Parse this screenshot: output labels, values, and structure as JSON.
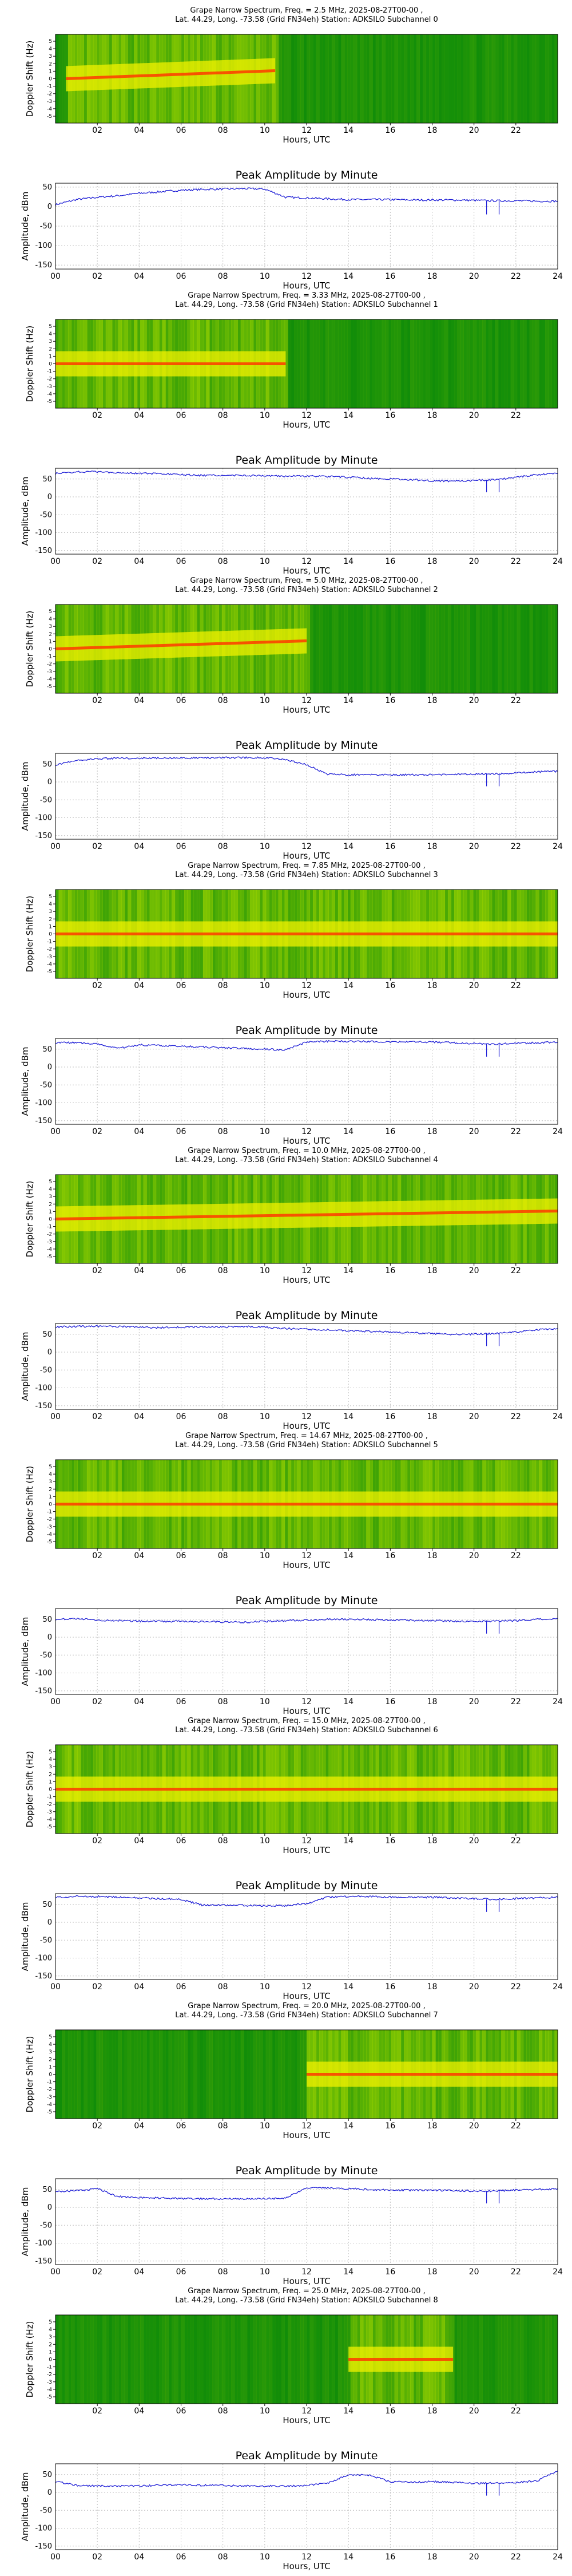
{
  "chart_data": [
    {
      "channel": 0,
      "type": "heatmap",
      "title_line1": "Grape Narrow Spectrum, Freq. = 2.5 MHz, 2025-08-27T00-00 ,",
      "title_line2": "Lat.  44.29, Long. -73.58 (Grid FN34eh) Station: ADKSILO Subchannel 0",
      "xlabel": "Hours, UTC",
      "ylabel": "Doppler Shift (Hz)",
      "x_ticks": [
        "02",
        "04",
        "06",
        "08",
        "10",
        "12",
        "14",
        "16",
        "18",
        "20",
        "22"
      ],
      "y_ticks": [
        "-5",
        "-4",
        "-3",
        "-2",
        "-1",
        "0",
        "1",
        "2",
        "3",
        "4",
        "5"
      ],
      "bright_span_hours": [
        0.5,
        10.5
      ],
      "band_rise": true
    },
    {
      "channel": 0,
      "type": "line",
      "title": "Peak Amplitude by Minute",
      "xlabel": "Hours, UTC",
      "ylabel": "Amplitude, dBm",
      "ylim": [
        -160,
        60
      ],
      "y_ticks": [
        "50",
        "0",
        "-50",
        "-100",
        "-150"
      ],
      "x_ticks": [
        "00",
        "02",
        "04",
        "06",
        "08",
        "10",
        "12",
        "14",
        "16",
        "18",
        "20",
        "22",
        "24"
      ],
      "x_hours": [
        0,
        1,
        2,
        3,
        4,
        5,
        6,
        7,
        8,
        9,
        10,
        11,
        12,
        13,
        14,
        15,
        16,
        17,
        18,
        19,
        20,
        21,
        22,
        23,
        24
      ],
      "values": [
        5,
        18,
        24,
        28,
        34,
        38,
        42,
        44,
        45,
        46,
        45,
        24,
        22,
        20,
        18,
        18,
        18,
        17,
        17,
        17,
        16,
        15,
        15,
        14,
        14
      ]
    },
    {
      "channel": 1,
      "type": "heatmap",
      "title_line1": "Grape Narrow Spectrum, Freq. = 3.33 MHz, 2025-08-27T00-00 ,",
      "title_line2": "Lat.  44.29, Long. -73.58 (Grid FN34eh) Station: ADKSILO Subchannel 1",
      "xlabel": "Hours, UTC",
      "ylabel": "Doppler Shift (Hz)",
      "x_ticks": [
        "02",
        "04",
        "06",
        "08",
        "10",
        "12",
        "14",
        "16",
        "18",
        "20",
        "22"
      ],
      "y_ticks": [
        "-5",
        "-4",
        "-3",
        "-2",
        "-1",
        "0",
        "1",
        "2",
        "3",
        "4",
        "5"
      ],
      "bright_span_hours": [
        0,
        11
      ],
      "band_rise": false
    },
    {
      "channel": 1,
      "type": "line",
      "title": "Peak Amplitude by Minute",
      "xlabel": "Hours, UTC",
      "ylabel": "Amplitude, dBm",
      "ylim": [
        -160,
        80
      ],
      "y_ticks": [
        "50",
        "0",
        "-50",
        "-100",
        "-150"
      ],
      "x_ticks": [
        "00",
        "02",
        "04",
        "06",
        "08",
        "10",
        "12",
        "14",
        "16",
        "18",
        "20",
        "22",
        "24"
      ],
      "x_hours": [
        0,
        1,
        2,
        3,
        4,
        5,
        6,
        7,
        8,
        9,
        10,
        11,
        12,
        13,
        14,
        15,
        16,
        17,
        18,
        19,
        20,
        21,
        22,
        23,
        24
      ],
      "values": [
        65,
        70,
        70,
        68,
        66,
        64,
        62,
        60,
        60,
        60,
        59,
        58,
        58,
        57,
        55,
        52,
        50,
        48,
        45,
        44,
        46,
        48,
        55,
        62,
        65
      ]
    },
    {
      "channel": 2,
      "type": "heatmap",
      "title_line1": "Grape Narrow Spectrum, Freq. = 5.0 MHz, 2025-08-27T00-00 ,",
      "title_line2": "Lat.  44.29, Long. -73.58 (Grid FN34eh) Station: ADKSILO Subchannel 2",
      "xlabel": "Hours, UTC",
      "ylabel": "Doppler Shift (Hz)",
      "x_ticks": [
        "02",
        "04",
        "06",
        "08",
        "10",
        "12",
        "14",
        "16",
        "18",
        "20",
        "22"
      ],
      "y_ticks": [
        "-5",
        "-4",
        "-3",
        "-2",
        "-1",
        "0",
        "1",
        "2",
        "3",
        "4",
        "5"
      ],
      "bright_span_hours": [
        0,
        12
      ],
      "band_rise": true
    },
    {
      "channel": 2,
      "type": "line",
      "title": "Peak Amplitude by Minute",
      "xlabel": "Hours, UTC",
      "ylabel": "Amplitude, dBm",
      "ylim": [
        -160,
        80
      ],
      "y_ticks": [
        "50",
        "0",
        "-50",
        "-100",
        "-150"
      ],
      "x_ticks": [
        "00",
        "02",
        "04",
        "06",
        "08",
        "10",
        "12",
        "14",
        "16",
        "18",
        "20",
        "22",
        "24"
      ],
      "x_hours": [
        0,
        1,
        2,
        3,
        4,
        5,
        6,
        7,
        8,
        9,
        10,
        11,
        12,
        13,
        14,
        15,
        16,
        17,
        18,
        19,
        20,
        21,
        22,
        23,
        24
      ],
      "values": [
        48,
        60,
        65,
        66,
        67,
        67,
        67,
        67,
        68,
        68,
        68,
        62,
        48,
        22,
        20,
        20,
        20,
        20,
        20,
        21,
        22,
        23,
        25,
        28,
        30
      ]
    },
    {
      "channel": 3,
      "type": "heatmap",
      "title_line1": "Grape Narrow Spectrum, Freq. = 7.85 MHz, 2025-08-27T00-00 ,",
      "title_line2": "Lat.  44.29, Long. -73.58 (Grid FN34eh) Station: ADKSILO Subchannel 3",
      "xlabel": "Hours, UTC",
      "ylabel": "Doppler Shift (Hz)",
      "x_ticks": [
        "02",
        "04",
        "06",
        "08",
        "10",
        "12",
        "14",
        "16",
        "18",
        "20",
        "22"
      ],
      "y_ticks": [
        "-5",
        "-4",
        "-3",
        "-2",
        "-1",
        "0",
        "1",
        "2",
        "3",
        "4",
        "5"
      ],
      "bright_span_hours": [
        0,
        24
      ],
      "band_rise": false
    },
    {
      "channel": 3,
      "type": "line",
      "title": "Peak Amplitude by Minute",
      "xlabel": "Hours, UTC",
      "ylabel": "Amplitude, dBm",
      "ylim": [
        -160,
        80
      ],
      "y_ticks": [
        "50",
        "0",
        "-50",
        "-100",
        "-150"
      ],
      "x_ticks": [
        "00",
        "02",
        "04",
        "06",
        "08",
        "10",
        "12",
        "14",
        "16",
        "18",
        "20",
        "22",
        "24"
      ],
      "x_hours": [
        0,
        1,
        2,
        3,
        4,
        5,
        6,
        7,
        8,
        9,
        10,
        11,
        12,
        13,
        14,
        15,
        16,
        17,
        18,
        19,
        20,
        21,
        22,
        23,
        24
      ],
      "values": [
        68,
        68,
        65,
        52,
        62,
        60,
        58,
        56,
        54,
        52,
        50,
        48,
        70,
        72,
        72,
        71,
        70,
        70,
        70,
        68,
        66,
        64,
        66,
        68,
        70
      ]
    },
    {
      "channel": 4,
      "type": "heatmap",
      "title_line1": "Grape Narrow Spectrum, Freq. = 10.0 MHz, 2025-08-27T00-00 ,",
      "title_line2": "Lat.  44.29, Long. -73.58 (Grid FN34eh) Station: ADKSILO Subchannel 4",
      "xlabel": "Hours, UTC",
      "ylabel": "Doppler Shift (Hz)",
      "x_ticks": [
        "02",
        "04",
        "06",
        "08",
        "10",
        "12",
        "14",
        "16",
        "18",
        "20",
        "22"
      ],
      "y_ticks": [
        "-5",
        "-4",
        "-3",
        "-2",
        "-1",
        "0",
        "1",
        "2",
        "3",
        "4",
        "5"
      ],
      "bright_span_hours": [
        0,
        24
      ],
      "band_rise": true
    },
    {
      "channel": 4,
      "type": "line",
      "title": "Peak Amplitude by Minute",
      "xlabel": "Hours, UTC",
      "ylabel": "Amplitude, dBm",
      "ylim": [
        -160,
        80
      ],
      "y_ticks": [
        "50",
        "0",
        "-50",
        "-100",
        "-150"
      ],
      "x_ticks": [
        "00",
        "02",
        "04",
        "06",
        "08",
        "10",
        "12",
        "14",
        "16",
        "18",
        "20",
        "22",
        "24"
      ],
      "x_hours": [
        0,
        1,
        2,
        3,
        4,
        5,
        6,
        7,
        8,
        9,
        10,
        11,
        12,
        13,
        14,
        15,
        16,
        17,
        18,
        19,
        20,
        21,
        22,
        23,
        24
      ],
      "values": [
        70,
        72,
        72,
        72,
        70,
        68,
        70,
        70,
        70,
        72,
        70,
        66,
        64,
        62,
        60,
        58,
        56,
        54,
        52,
        50,
        50,
        52,
        56,
        62,
        66
      ]
    },
    {
      "channel": 5,
      "type": "heatmap",
      "title_line1": "Grape Narrow Spectrum, Freq. = 14.67 MHz, 2025-08-27T00-00 ,",
      "title_line2": "Lat.  44.29, Long. -73.58 (Grid FN34eh) Station: ADKSILO Subchannel 5",
      "xlabel": "Hours, UTC",
      "ylabel": "Doppler Shift (Hz)",
      "x_ticks": [
        "02",
        "04",
        "06",
        "08",
        "10",
        "12",
        "14",
        "16",
        "18",
        "20",
        "22"
      ],
      "y_ticks": [
        "-5",
        "-4",
        "-3",
        "-2",
        "-1",
        "0",
        "1",
        "2",
        "3",
        "4",
        "5"
      ],
      "bright_span_hours": [
        0,
        24
      ],
      "band_rise": false
    },
    {
      "channel": 5,
      "type": "line",
      "title": "Peak Amplitude by Minute",
      "xlabel": "Hours, UTC",
      "ylabel": "Amplitude, dBm",
      "ylim": [
        -160,
        80
      ],
      "y_ticks": [
        "50",
        "0",
        "-50",
        "-100",
        "-150"
      ],
      "x_ticks": [
        "00",
        "02",
        "04",
        "06",
        "08",
        "10",
        "12",
        "14",
        "16",
        "18",
        "20",
        "22",
        "24"
      ],
      "x_hours": [
        0,
        1,
        2,
        3,
        4,
        5,
        6,
        7,
        8,
        9,
        10,
        11,
        12,
        13,
        14,
        15,
        16,
        17,
        18,
        19,
        20,
        21,
        22,
        23,
        24
      ],
      "values": [
        50,
        52,
        48,
        46,
        45,
        44,
        44,
        43,
        43,
        42,
        44,
        46,
        48,
        50,
        50,
        49,
        48,
        47,
        46,
        45,
        44,
        45,
        46,
        50,
        52
      ]
    },
    {
      "channel": 6,
      "type": "heatmap",
      "title_line1": "Grape Narrow Spectrum, Freq. = 15.0 MHz, 2025-08-27T00-00 ,",
      "title_line2": "Lat.  44.29, Long. -73.58 (Grid FN34eh) Station: ADKSILO Subchannel 6",
      "xlabel": "Hours, UTC",
      "ylabel": "Doppler Shift (Hz)",
      "x_ticks": [
        "02",
        "04",
        "06",
        "08",
        "10",
        "12",
        "14",
        "16",
        "18",
        "20",
        "22"
      ],
      "y_ticks": [
        "-5",
        "-4",
        "-3",
        "-2",
        "-1",
        "0",
        "1",
        "2",
        "3",
        "4",
        "5"
      ],
      "bright_span_hours": [
        0,
        24
      ],
      "band_rise": false
    },
    {
      "channel": 6,
      "type": "line",
      "title": "Peak Amplitude by Minute",
      "xlabel": "Hours, UTC",
      "ylabel": "Amplitude, dBm",
      "ylim": [
        -160,
        80
      ],
      "y_ticks": [
        "50",
        "0",
        "-50",
        "-100",
        "-150"
      ],
      "x_ticks": [
        "00",
        "02",
        "04",
        "06",
        "08",
        "10",
        "12",
        "14",
        "16",
        "18",
        "20",
        "22",
        "24"
      ],
      "x_hours": [
        0,
        1,
        2,
        3,
        4,
        5,
        6,
        7,
        8,
        9,
        10,
        11,
        12,
        13,
        14,
        15,
        16,
        17,
        18,
        19,
        20,
        21,
        22,
        23,
        24
      ],
      "values": [
        70,
        72,
        72,
        70,
        68,
        66,
        64,
        48,
        48,
        47,
        46,
        46,
        52,
        70,
        72,
        72,
        70,
        70,
        70,
        68,
        66,
        64,
        66,
        68,
        70
      ]
    },
    {
      "channel": 7,
      "type": "heatmap",
      "title_line1": "Grape Narrow Spectrum, Freq. = 20.0 MHz, 2025-08-27T00-00 ,",
      "title_line2": "Lat.  44.29, Long. -73.58 (Grid FN34eh) Station: ADKSILO Subchannel 7",
      "xlabel": "Hours, UTC",
      "ylabel": "Doppler Shift (Hz)",
      "x_ticks": [
        "02",
        "04",
        "06",
        "08",
        "10",
        "12",
        "14",
        "16",
        "18",
        "20",
        "22"
      ],
      "y_ticks": [
        "-5",
        "-4",
        "-3",
        "-2",
        "-1",
        "0",
        "1",
        "2",
        "3",
        "4",
        "5"
      ],
      "bright_span_hours": [
        12,
        24
      ],
      "band_rise": false
    },
    {
      "channel": 7,
      "type": "line",
      "title": "Peak Amplitude by Minute",
      "xlabel": "Hours, UTC",
      "ylabel": "Amplitude, dBm",
      "ylim": [
        -160,
        80
      ],
      "y_ticks": [
        "50",
        "0",
        "-50",
        "-100",
        "-150"
      ],
      "x_ticks": [
        "00",
        "02",
        "04",
        "06",
        "08",
        "10",
        "12",
        "14",
        "16",
        "18",
        "20",
        "22",
        "24"
      ],
      "x_hours": [
        0,
        1,
        2,
        3,
        4,
        5,
        6,
        7,
        8,
        9,
        10,
        11,
        12,
        13,
        14,
        15,
        16,
        17,
        18,
        19,
        20,
        21,
        22,
        23,
        24
      ],
      "values": [
        45,
        46,
        52,
        30,
        28,
        26,
        25,
        24,
        24,
        23,
        24,
        26,
        55,
        54,
        52,
        50,
        48,
        48,
        48,
        47,
        46,
        46,
        48,
        50,
        52
      ]
    },
    {
      "channel": 8,
      "type": "heatmap",
      "title_line1": "Grape Narrow Spectrum, Freq. = 25.0 MHz, 2025-08-27T00-00 ,",
      "title_line2": "Lat.  44.29, Long. -73.58 (Grid FN34eh) Station: ADKSILO Subchannel 8",
      "xlabel": "Hours, UTC",
      "ylabel": "Doppler Shift (Hz)",
      "x_ticks": [
        "02",
        "04",
        "06",
        "08",
        "10",
        "12",
        "14",
        "16",
        "18",
        "20",
        "22"
      ],
      "y_ticks": [
        "-5",
        "-4",
        "-3",
        "-2",
        "-1",
        "0",
        "1",
        "2",
        "3",
        "4",
        "5"
      ],
      "bright_span_hours": [
        14,
        19
      ],
      "band_rise": false
    },
    {
      "channel": 8,
      "type": "line",
      "title": "Peak Amplitude by Minute",
      "xlabel": "Hours, UTC",
      "ylabel": "Amplitude, dBm",
      "ylim": [
        -160,
        80
      ],
      "y_ticks": [
        "50",
        "0",
        "-50",
        "-100",
        "-150"
      ],
      "x_ticks": [
        "00",
        "02",
        "04",
        "06",
        "08",
        "10",
        "12",
        "14",
        "16",
        "18",
        "20",
        "22",
        "24"
      ],
      "x_hours": [
        0,
        1,
        2,
        3,
        4,
        5,
        6,
        7,
        8,
        9,
        10,
        11,
        12,
        13,
        14,
        15,
        16,
        17,
        18,
        19,
        20,
        21,
        22,
        23,
        24
      ],
      "values": [
        30,
        20,
        18,
        18,
        18,
        20,
        22,
        20,
        20,
        18,
        18,
        18,
        20,
        25,
        50,
        48,
        30,
        28,
        30,
        28,
        25,
        26,
        28,
        32,
        60
      ]
    }
  ],
  "colors": {
    "line": "#1f1fd6",
    "grid": "#bdbdbd",
    "heatmap_low": "#0a8a0a",
    "heatmap_mid": "#c8e600",
    "heatmap_high": "#ff3b00"
  }
}
